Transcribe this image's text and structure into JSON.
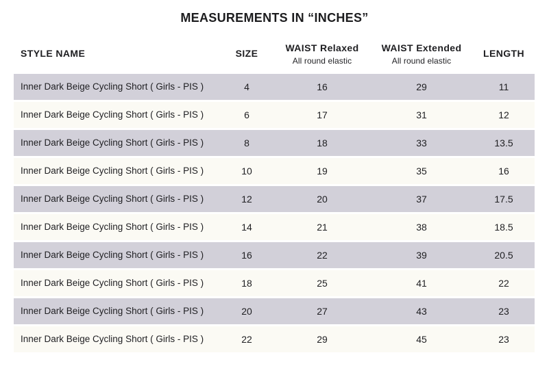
{
  "title": "MEASUREMENTS IN “INCHES”",
  "table": {
    "columns": {
      "style_name": "STYLE NAME",
      "size": "SIZE",
      "waist_relaxed": "WAIST Relaxed",
      "waist_relaxed_sub": "All round elastic",
      "waist_extended": "WAIST Extended",
      "waist_extended_sub": "All round elastic",
      "length": "LENGTH"
    },
    "rows": [
      {
        "style": "Inner Dark Beige Cycling Short ( Girls - PIS )",
        "size": "4",
        "waist_relaxed": "16",
        "waist_extended": "29",
        "length": "11"
      },
      {
        "style": "Inner Dark Beige Cycling Short ( Girls - PIS )",
        "size": "6",
        "waist_relaxed": "17",
        "waist_extended": "31",
        "length": "12"
      },
      {
        "style": "Inner Dark Beige Cycling Short ( Girls - PIS )",
        "size": "8",
        "waist_relaxed": "18",
        "waist_extended": "33",
        "length": "13.5"
      },
      {
        "style": "Inner Dark Beige Cycling Short ( Girls - PIS )",
        "size": "10",
        "waist_relaxed": "19",
        "waist_extended": "35",
        "length": "16"
      },
      {
        "style": "Inner Dark Beige Cycling Short ( Girls - PIS )",
        "size": "12",
        "waist_relaxed": "20",
        "waist_extended": "37",
        "length": "17.5"
      },
      {
        "style": "Inner Dark Beige Cycling Short ( Girls - PIS )",
        "size": "14",
        "waist_relaxed": "21",
        "waist_extended": "38",
        "length": "18.5"
      },
      {
        "style": "Inner Dark Beige Cycling Short ( Girls - PIS )",
        "size": "16",
        "waist_relaxed": "22",
        "waist_extended": "39",
        "length": "20.5"
      },
      {
        "style": "Inner Dark Beige Cycling Short ( Girls - PIS )",
        "size": "18",
        "waist_relaxed": "25",
        "waist_extended": "41",
        "length": "22"
      },
      {
        "style": "Inner Dark Beige Cycling Short ( Girls - PIS )",
        "size": "20",
        "waist_relaxed": "27",
        "waist_extended": "43",
        "length": "23"
      },
      {
        "style": "Inner Dark Beige Cycling Short ( Girls - PIS )",
        "size": "22",
        "waist_relaxed": "29",
        "waist_extended": "45",
        "length": "23"
      }
    ]
  },
  "colors": {
    "row_alt": "#d2d0d9",
    "row_base": "#fbfaf4",
    "text": "#1e1e21",
    "background": "#ffffff"
  }
}
